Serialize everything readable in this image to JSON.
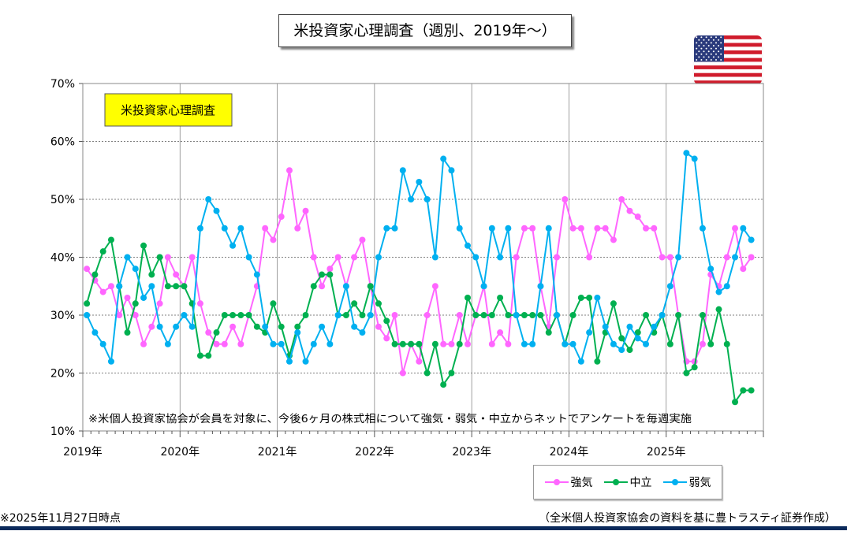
{
  "chart_data": {
    "type": "line",
    "title": "米投資家心理調査（週別、2019年～）",
    "inset_label": "米投資家心理調査",
    "note": "※米個人投資家協会が会員を対象に、今後6ヶ月の株式相について強気・弱気・中立からネットでアンケートを毎週実施",
    "x_start": "2019-01",
    "x_step": "month (approx. monthly values of weekly survey)",
    "x_ticks": [
      "2019年",
      "2020年",
      "2021年",
      "2022年",
      "2023年",
      "2024年",
      "2025年"
    ],
    "y_ticks": [
      "10%",
      "20%",
      "30%",
      "40%",
      "50%",
      "60%",
      "70%"
    ],
    "ylim": [
      10,
      70
    ],
    "xlabel": "",
    "ylabel": "",
    "grid": true,
    "legend_position": "bottom-right",
    "series": [
      {
        "name": "強気",
        "color": "#ff66ff",
        "values": [
          38,
          36,
          34,
          35,
          30,
          33,
          30,
          25,
          28,
          32,
          40,
          37,
          35,
          40,
          32,
          27,
          25,
          25,
          28,
          25,
          30,
          35,
          45,
          43,
          47,
          55,
          45,
          48,
          40,
          35,
          38,
          40,
          35,
          40,
          43,
          35,
          28,
          26,
          30,
          20,
          25,
          22,
          30,
          35,
          25,
          25,
          30,
          25,
          30,
          35,
          25,
          27,
          25,
          40,
          45,
          45,
          35,
          28,
          40,
          50,
          45,
          45,
          40,
          45,
          45,
          43,
          50,
          48,
          47,
          45,
          45,
          40,
          40,
          30,
          22,
          22,
          25,
          37,
          35,
          40,
          45,
          38,
          40
        ]
      },
      {
        "name": "中立",
        "color": "#00b050",
        "values": [
          32,
          37,
          41,
          43,
          35,
          27,
          32,
          42,
          37,
          40,
          35,
          35,
          35,
          32,
          23,
          23,
          27,
          30,
          30,
          30,
          30,
          28,
          27,
          32,
          28,
          23,
          28,
          30,
          35,
          37,
          37,
          30,
          30,
          32,
          30,
          35,
          32,
          29,
          25,
          25,
          25,
          25,
          20,
          25,
          18,
          20,
          25,
          33,
          30,
          30,
          30,
          33,
          30,
          30,
          30,
          30,
          30,
          27,
          30,
          25,
          30,
          33,
          33,
          22,
          27,
          32,
          26,
          24,
          27,
          30,
          27,
          30,
          25,
          30,
          20,
          21,
          30,
          25,
          31,
          25,
          15,
          17,
          17
        ]
      },
      {
        "name": "弱気",
        "color": "#00b0f0",
        "values": [
          30,
          27,
          25,
          22,
          35,
          40,
          38,
          33,
          35,
          28,
          25,
          28,
          30,
          28,
          45,
          50,
          48,
          45,
          42,
          45,
          40,
          37,
          28,
          25,
          25,
          22,
          27,
          22,
          25,
          28,
          25,
          30,
          35,
          28,
          27,
          30,
          40,
          45,
          45,
          55,
          50,
          53,
          50,
          40,
          57,
          55,
          45,
          42,
          40,
          35,
          45,
          40,
          45,
          30,
          25,
          25,
          35,
          45,
          30,
          25,
          25,
          22,
          27,
          33,
          28,
          25,
          24,
          28,
          26,
          25,
          28,
          30,
          35,
          40,
          58,
          57,
          45,
          38,
          34,
          35,
          40,
          45,
          43
        ]
      }
    ]
  },
  "footer": {
    "date_note": "※2025年11月27日時点",
    "source": "（全米個人投資家協会の資料を基に豊トラスティ証券作成）"
  }
}
